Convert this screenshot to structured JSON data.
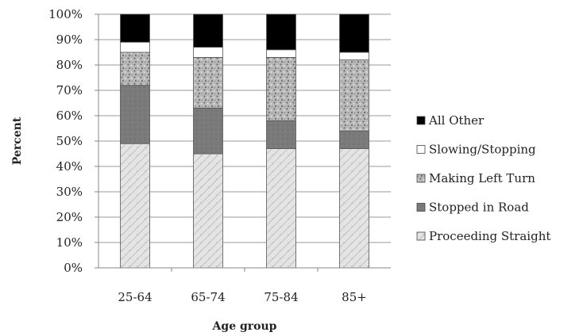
{
  "chart_data": {
    "type": "bar",
    "stacked": true,
    "categories": [
      "25-64",
      "65-74",
      "75-84",
      "85+"
    ],
    "series": [
      {
        "name": "Proceeding Straight",
        "values": [
          49,
          45,
          47,
          47
        ],
        "pattern": "light-texture"
      },
      {
        "name": "Stopped in Road",
        "values": [
          23,
          18,
          11,
          7
        ],
        "pattern": "dark-gray"
      },
      {
        "name": "Making Left Turn",
        "values": [
          13,
          20,
          25,
          28
        ],
        "pattern": "speckled"
      },
      {
        "name": "Slowing/Stopping",
        "values": [
          4,
          4,
          3,
          3
        ],
        "pattern": "white"
      },
      {
        "name": "All Other",
        "values": [
          11,
          13,
          14,
          15
        ],
        "pattern": "black"
      }
    ],
    "xlabel": "Age group",
    "ylabel": "Percent",
    "ylim": [
      0,
      100
    ],
    "yticks": [
      "0%",
      "10%",
      "20%",
      "30%",
      "40%",
      "50%",
      "60%",
      "70%",
      "80%",
      "90%",
      "100%"
    ],
    "grid": true,
    "legend": "right",
    "legend_order": [
      "All Other",
      "Slowing/Stopping",
      "Making Left Turn",
      "Stopped in Road",
      "Proceeding Straight"
    ]
  }
}
